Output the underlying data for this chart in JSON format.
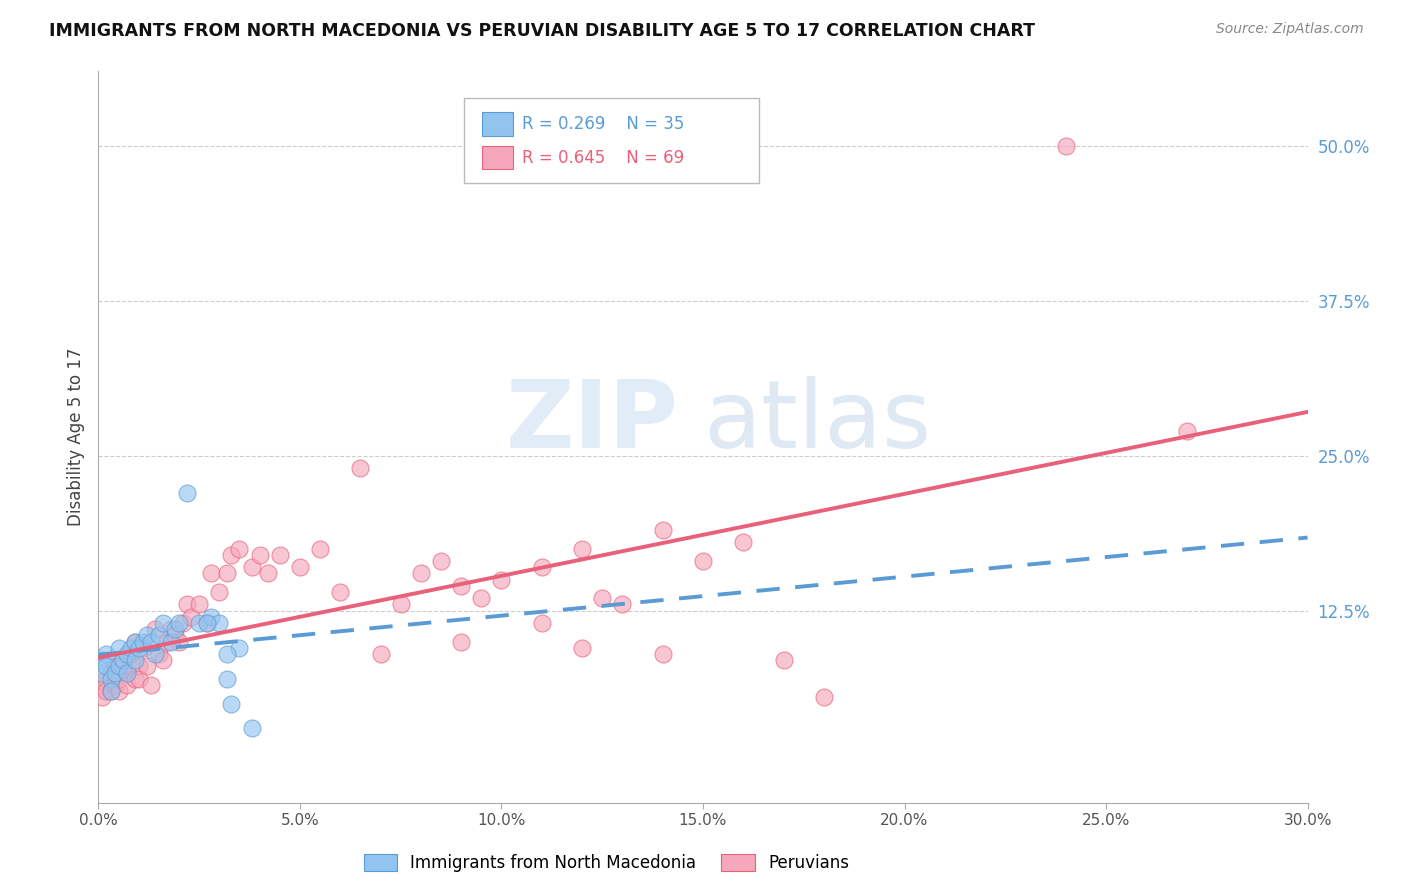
{
  "title": "IMMIGRANTS FROM NORTH MACEDONIA VS PERUVIAN DISABILITY AGE 5 TO 17 CORRELATION CHART",
  "source": "Source: ZipAtlas.com",
  "ylabel": "Disability Age 5 to 17",
  "xlim": [
    0.0,
    0.3
  ],
  "ylim": [
    -0.03,
    0.56
  ],
  "xtick_labels": [
    "0.0%",
    "5.0%",
    "10.0%",
    "15.0%",
    "20.0%",
    "25.0%",
    "30.0%"
  ],
  "xtick_values": [
    0.0,
    0.05,
    0.1,
    0.15,
    0.2,
    0.25,
    0.3
  ],
  "ytick_labels_right": [
    "12.5%",
    "25.0%",
    "37.5%",
    "50.0%"
  ],
  "ytick_values_right": [
    0.125,
    0.25,
    0.375,
    0.5
  ],
  "legend_blue_label": "Immigrants from North Macedonia",
  "legend_pink_label": "Peruvians",
  "R_blue": "R = 0.269",
  "N_blue": "N = 35",
  "R_pink": "R = 0.645",
  "N_pink": "N = 69",
  "blue_color": "#92C4F0",
  "pink_color": "#F5A8BB",
  "blue_line_color": "#5B9BD5",
  "pink_line_color": "#E8607A",
  "watermark_zip": "ZIP",
  "watermark_atlas": "atlas",
  "blue_scatter_x": [
    0.001,
    0.001,
    0.002,
    0.002,
    0.003,
    0.003,
    0.004,
    0.005,
    0.005,
    0.006,
    0.007,
    0.007,
    0.008,
    0.009,
    0.009,
    0.01,
    0.011,
    0.012,
    0.013,
    0.014,
    0.015,
    0.016,
    0.018,
    0.019,
    0.02,
    0.022,
    0.025,
    0.028,
    0.03,
    0.032,
    0.035,
    0.038,
    0.032,
    0.027,
    0.033
  ],
  "blue_scatter_y": [
    0.085,
    0.075,
    0.09,
    0.08,
    0.07,
    0.06,
    0.075,
    0.095,
    0.08,
    0.085,
    0.09,
    0.075,
    0.095,
    0.085,
    0.1,
    0.095,
    0.1,
    0.105,
    0.1,
    0.09,
    0.105,
    0.115,
    0.1,
    0.11,
    0.115,
    0.22,
    0.115,
    0.12,
    0.115,
    0.07,
    0.095,
    0.03,
    0.09,
    0.115,
    0.05
  ],
  "pink_scatter_x": [
    0.001,
    0.001,
    0.002,
    0.002,
    0.003,
    0.003,
    0.004,
    0.004,
    0.005,
    0.005,
    0.006,
    0.007,
    0.007,
    0.008,
    0.008,
    0.009,
    0.009,
    0.01,
    0.01,
    0.011,
    0.012,
    0.013,
    0.014,
    0.015,
    0.016,
    0.017,
    0.018,
    0.019,
    0.02,
    0.021,
    0.022,
    0.023,
    0.025,
    0.027,
    0.028,
    0.03,
    0.032,
    0.033,
    0.035,
    0.038,
    0.04,
    0.042,
    0.045,
    0.05,
    0.055,
    0.06,
    0.065,
    0.07,
    0.075,
    0.08,
    0.09,
    0.1,
    0.11,
    0.12,
    0.13,
    0.14,
    0.15,
    0.16,
    0.17,
    0.18,
    0.085,
    0.09,
    0.095,
    0.11,
    0.12,
    0.125,
    0.14,
    0.27,
    0.24
  ],
  "pink_scatter_y": [
    0.065,
    0.055,
    0.07,
    0.06,
    0.06,
    0.075,
    0.065,
    0.08,
    0.06,
    0.07,
    0.08,
    0.075,
    0.065,
    0.08,
    0.09,
    0.07,
    0.1,
    0.08,
    0.07,
    0.095,
    0.08,
    0.065,
    0.11,
    0.09,
    0.085,
    0.1,
    0.11,
    0.105,
    0.1,
    0.115,
    0.13,
    0.12,
    0.13,
    0.115,
    0.155,
    0.14,
    0.155,
    0.17,
    0.175,
    0.16,
    0.17,
    0.155,
    0.17,
    0.16,
    0.175,
    0.14,
    0.24,
    0.09,
    0.13,
    0.155,
    0.1,
    0.15,
    0.16,
    0.175,
    0.13,
    0.19,
    0.165,
    0.18,
    0.085,
    0.055,
    0.165,
    0.145,
    0.135,
    0.115,
    0.095,
    0.135,
    0.09,
    0.27,
    0.5
  ]
}
